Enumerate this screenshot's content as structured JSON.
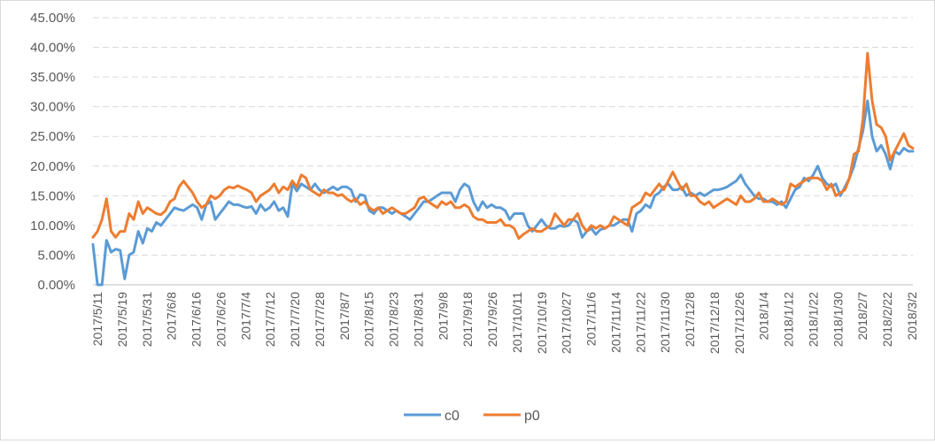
{
  "chart_data": {
    "type": "line",
    "title": "",
    "xlabel": "",
    "ylabel": "",
    "ylim": [
      0,
      0.45
    ],
    "y_ticks": [
      0,
      0.05,
      0.1,
      0.15,
      0.2,
      0.25,
      0.3,
      0.35,
      0.4,
      0.45
    ],
    "y_tick_labels": [
      "0.00%",
      "5.00%",
      "10.00%",
      "15.00%",
      "20.00%",
      "25.00%",
      "30.00%",
      "35.00%",
      "40.00%",
      "45.00%"
    ],
    "x_tick_labels": [
      "2017/5/11",
      "2017/5/19",
      "2017/5/31",
      "2017/6/8",
      "2017/6/16",
      "2017/6/26",
      "2017/7/4",
      "2017/7/12",
      "2017/7/20",
      "2017/7/28",
      "2017/8/7",
      "2017/8/15",
      "2017/8/23",
      "2017/8/31",
      "2017/9/8",
      "2017/9/18",
      "2017/9/26",
      "2017/10/11",
      "2017/10/19",
      "2017/10/27",
      "2017/11/6",
      "2017/11/14",
      "2017/11/22",
      "2017/11/30",
      "2017/12/8",
      "2017/12/18",
      "2017/12/26",
      "2018/1/4",
      "2018/1/12",
      "2018/1/22",
      "2018/1/30",
      "2018/2/7",
      "2018/2/22",
      "2018/3/2"
    ],
    "grid": true,
    "legend_position": "bottom",
    "colors": {
      "c0": "#5b9bd5",
      "p0": "#ed7d31",
      "grid": "#d9d9d9",
      "axis": "#bfbfbf"
    },
    "series": [
      {
        "name": "c0",
        "values": [
          0.068,
          0.0,
          0.0,
          0.075,
          0.055,
          0.06,
          0.058,
          0.01,
          0.05,
          0.055,
          0.09,
          0.07,
          0.095,
          0.09,
          0.105,
          0.1,
          0.11,
          0.12,
          0.13,
          0.127,
          0.125,
          0.13,
          0.135,
          0.13,
          0.11,
          0.135,
          0.14,
          0.11,
          0.12,
          0.13,
          0.14,
          0.135,
          0.135,
          0.132,
          0.13,
          0.132,
          0.12,
          0.135,
          0.125,
          0.13,
          0.14,
          0.125,
          0.13,
          0.115,
          0.17,
          0.158,
          0.17,
          0.165,
          0.16,
          0.17,
          0.16,
          0.155,
          0.16,
          0.165,
          0.16,
          0.165,
          0.165,
          0.16,
          0.14,
          0.152,
          0.15,
          0.125,
          0.12,
          0.13,
          0.13,
          0.125,
          0.12,
          0.125,
          0.12,
          0.115,
          0.11,
          0.12,
          0.13,
          0.14,
          0.14,
          0.145,
          0.15,
          0.155,
          0.155,
          0.155,
          0.14,
          0.16,
          0.17,
          0.165,
          0.14,
          0.125,
          0.14,
          0.13,
          0.135,
          0.13,
          0.13,
          0.125,
          0.11,
          0.12,
          0.12,
          0.12,
          0.1,
          0.09,
          0.1,
          0.11,
          0.1,
          0.095,
          0.095,
          0.1,
          0.098,
          0.1,
          0.11,
          0.105,
          0.08,
          0.09,
          0.095,
          0.085,
          0.093,
          0.095,
          0.1,
          0.1,
          0.105,
          0.11,
          0.11,
          0.09,
          0.12,
          0.125,
          0.135,
          0.13,
          0.15,
          0.155,
          0.165,
          0.17,
          0.16,
          0.16,
          0.165,
          0.15,
          0.155,
          0.15,
          0.155,
          0.15,
          0.155,
          0.16,
          0.16,
          0.162,
          0.165,
          0.17,
          0.175,
          0.185,
          0.17,
          0.16,
          0.15,
          0.145,
          0.145,
          0.14,
          0.14,
          0.135,
          0.14,
          0.13,
          0.145,
          0.16,
          0.165,
          0.18,
          0.175,
          0.185,
          0.2,
          0.18,
          0.17,
          0.165,
          0.17,
          0.15,
          0.165,
          0.18,
          0.2,
          0.23,
          0.26,
          0.31,
          0.25,
          0.225,
          0.235,
          0.22,
          0.195,
          0.225,
          0.22,
          0.23,
          0.225,
          0.225
        ]
      },
      {
        "name": "p0",
        "values": [
          0.08,
          0.09,
          0.11,
          0.145,
          0.09,
          0.08,
          0.09,
          0.09,
          0.12,
          0.11,
          0.14,
          0.12,
          0.13,
          0.125,
          0.12,
          0.118,
          0.125,
          0.14,
          0.145,
          0.165,
          0.175,
          0.165,
          0.155,
          0.14,
          0.13,
          0.135,
          0.15,
          0.145,
          0.15,
          0.16,
          0.165,
          0.163,
          0.167,
          0.163,
          0.16,
          0.155,
          0.14,
          0.15,
          0.155,
          0.16,
          0.17,
          0.155,
          0.165,
          0.16,
          0.175,
          0.165,
          0.185,
          0.18,
          0.16,
          0.155,
          0.15,
          0.16,
          0.155,
          0.155,
          0.15,
          0.152,
          0.145,
          0.14,
          0.145,
          0.135,
          0.14,
          0.13,
          0.125,
          0.13,
          0.12,
          0.125,
          0.13,
          0.125,
          0.12,
          0.12,
          0.125,
          0.13,
          0.145,
          0.148,
          0.14,
          0.135,
          0.13,
          0.14,
          0.135,
          0.14,
          0.13,
          0.13,
          0.135,
          0.13,
          0.115,
          0.11,
          0.11,
          0.105,
          0.105,
          0.105,
          0.11,
          0.1,
          0.1,
          0.095,
          0.078,
          0.085,
          0.09,
          0.095,
          0.09,
          0.09,
          0.095,
          0.1,
          0.12,
          0.11,
          0.1,
          0.11,
          0.11,
          0.12,
          0.1,
          0.09,
          0.1,
          0.095,
          0.1,
          0.095,
          0.1,
          0.115,
          0.11,
          0.105,
          0.1,
          0.13,
          0.135,
          0.14,
          0.155,
          0.15,
          0.16,
          0.17,
          0.16,
          0.175,
          0.19,
          0.175,
          0.16,
          0.17,
          0.15,
          0.15,
          0.14,
          0.135,
          0.14,
          0.13,
          0.135,
          0.14,
          0.145,
          0.14,
          0.135,
          0.15,
          0.14,
          0.14,
          0.145,
          0.155,
          0.14,
          0.14,
          0.145,
          0.14,
          0.135,
          0.14,
          0.17,
          0.165,
          0.17,
          0.175,
          0.18,
          0.18,
          0.18,
          0.175,
          0.16,
          0.17,
          0.15,
          0.155,
          0.16,
          0.18,
          0.22,
          0.225,
          0.28,
          0.39,
          0.31,
          0.27,
          0.265,
          0.25,
          0.21,
          0.225,
          0.24,
          0.255,
          0.235,
          0.23
        ]
      }
    ]
  }
}
